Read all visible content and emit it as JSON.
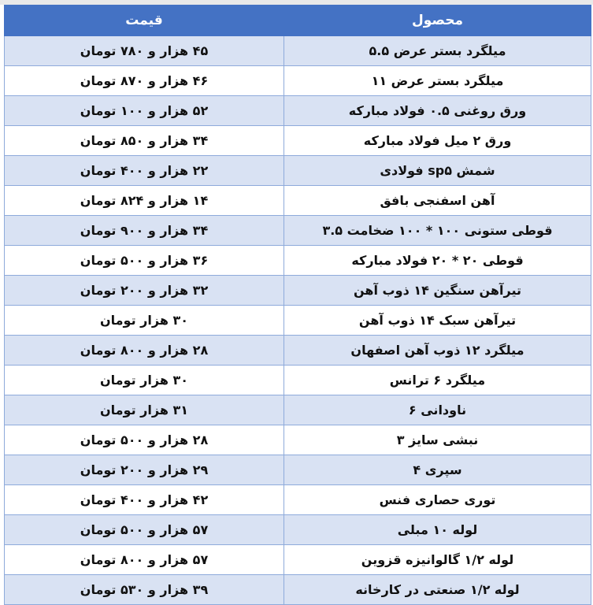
{
  "table": {
    "headers": {
      "product": "محصول",
      "price": "قیمت"
    },
    "rows": [
      {
        "product": "میلگرد بستر عرض ۵.۵",
        "price": "۴۵ هزار و ۷۸۰ تومان"
      },
      {
        "product": "میلگرد بستر عرض ۱۱",
        "price": "۴۶ هزار و ۸۷۰ تومان"
      },
      {
        "product": "ورق روغنی ۰.۵ فولاد مبارکه",
        "price": "۵۲ هزار و ۱۰۰ تومان"
      },
      {
        "product": "ورق ۲ میل فولاد مبارکه",
        "price": "۳۴ هزار و ۸۵۰ تومان"
      },
      {
        "product": "شمش sp۵ فولادی",
        "price": "۲۲ هزار و ۴۰۰ تومان"
      },
      {
        "product": "آهن اسفنجی بافق",
        "price": "۱۴ هزار و ۸۲۴ تومان"
      },
      {
        "product": "قوطی ستونی ۱۰۰ * ۱۰۰ ضخامت ۳.۵",
        "price": "۳۴ هزار و ۹۰۰ تومان"
      },
      {
        "product": "قوطی ۲۰ * ۲۰ فولاد مبارکه",
        "price": "۳۶ هزار و ۵۰۰ تومان"
      },
      {
        "product": "تیرآهن سنگین ۱۴ ذوب آهن",
        "price": "۳۲ هزار و ۲۰۰ تومان"
      },
      {
        "product": "تیرآهن سبک ۱۴ ذوب آهن",
        "price": "۳۰ هزار تومان"
      },
      {
        "product": "میلگرد ۱۲ ذوب آهن اصفهان",
        "price": "۲۸ هزار و ۸۰۰ تومان"
      },
      {
        "product": "میلگرد ۶ ترانس",
        "price": "۳۰ هزار تومان"
      },
      {
        "product": "ناودانی ۶",
        "price": "۳۱ هزار تومان"
      },
      {
        "product": "نبشی سایز ۳",
        "price": "۲۸ هزار و ۵۰۰ تومان"
      },
      {
        "product": "سپری ۴",
        "price": "۲۹ هزار و ۲۰۰ تومان"
      },
      {
        "product": "توری حصاری فنس",
        "price": "۴۲ هزار و ۴۰۰ تومان"
      },
      {
        "product": "لوله ۱۰ مبلی",
        "price": "۵۷ هزار و ۵۰۰ تومان"
      },
      {
        "product": "لوله ۱/۲ گالوانیزه قزوین",
        "price": "۵۷ هزار و ۸۰۰ تومان"
      },
      {
        "product": "لوله ۱/۲ صنعتی در کارخانه",
        "price": "۳۹ هزار و ۵۳۰ تومان"
      }
    ]
  },
  "colors": {
    "header": "#4472C4",
    "band": "#D9E2F3",
    "border": "#8EAADB"
  }
}
